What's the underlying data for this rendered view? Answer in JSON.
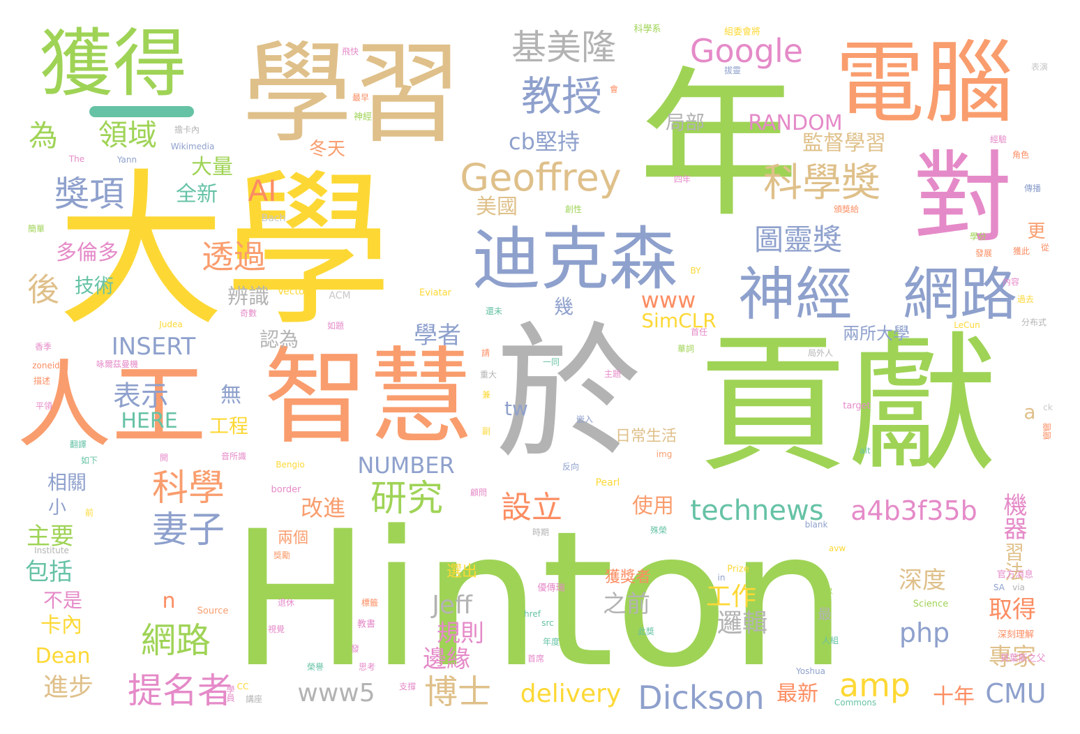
{
  "palette": {
    "green": "#9fd356",
    "yellow": "#fdd835",
    "gray": "#b3b3b3",
    "salmon": "#f99d6e",
    "tan": "#dfc08a",
    "pink": "#e58ac8",
    "blue": "#8ea0cc",
    "teal": "#66c2a5",
    "orange": "#fc8d62",
    "lightgray": "#c7c7c7"
  },
  "accent_bar_color": "#66c2a5",
  "words": [
    {
      "text": "Hinton",
      "color": "green"
    },
    {
      "text": "大學",
      "color": "yellow"
    },
    {
      "text": "年",
      "color": "green"
    },
    {
      "text": "於",
      "color": "gray"
    },
    {
      "text": "貢獻",
      "color": "green"
    },
    {
      "text": "學習",
      "color": "tan"
    },
    {
      "text": "智慧",
      "color": "salmon"
    },
    {
      "text": "電腦",
      "color": "salmon"
    },
    {
      "text": "對",
      "color": "pink"
    },
    {
      "text": "人工",
      "color": "salmon"
    },
    {
      "text": "獲得",
      "color": "green"
    },
    {
      "text": "迪克森",
      "color": "blue"
    },
    {
      "text": "神經",
      "color": "blue"
    },
    {
      "text": "網路",
      "color": "blue"
    },
    {
      "text": "Geoffrey",
      "color": "tan"
    },
    {
      "text": "Google",
      "color": "pink"
    },
    {
      "text": "基美隆",
      "color": "gray"
    },
    {
      "text": "教授",
      "color": "blue"
    },
    {
      "text": "科學獎",
      "color": "tan"
    },
    {
      "text": "Dickson",
      "color": "blue"
    },
    {
      "text": "technews",
      "color": "teal"
    },
    {
      "text": "a4b3f35b",
      "color": "pink"
    },
    {
      "text": "提名者",
      "color": "pink"
    },
    {
      "text": "科學",
      "color": "salmon"
    },
    {
      "text": "妻子",
      "color": "blue"
    },
    {
      "text": "研究",
      "color": "green"
    },
    {
      "text": "設立",
      "color": "orange"
    },
    {
      "text": "博士",
      "color": "tan"
    },
    {
      "text": "網路",
      "color": "green"
    },
    {
      "text": "amp",
      "color": "yellow"
    },
    {
      "text": "delivery",
      "color": "yellow"
    },
    {
      "text": "www5",
      "color": "gray"
    },
    {
      "text": "CMU",
      "color": "blue"
    },
    {
      "text": "獎項",
      "color": "blue"
    },
    {
      "text": "領域",
      "color": "green"
    },
    {
      "text": "為",
      "color": "green"
    },
    {
      "text": "後",
      "color": "tan"
    },
    {
      "text": "透過",
      "color": "salmon"
    },
    {
      "text": "表示",
      "color": "blue"
    },
    {
      "text": "圖靈獎",
      "color": "blue"
    },
    {
      "text": "RANDOM",
      "color": "pink"
    },
    {
      "text": "INSERT",
      "color": "blue"
    },
    {
      "text": "NUMBER",
      "color": "blue"
    },
    {
      "text": "HERE",
      "color": "teal"
    },
    {
      "text": "AI",
      "color": "orange"
    },
    {
      "text": "cb堅持",
      "color": "blue"
    },
    {
      "text": "www",
      "color": "orange"
    },
    {
      "text": "SimCLR",
      "color": "yellow"
    },
    {
      "text": "監督學習",
      "color": "tan"
    },
    {
      "text": "兩所大學",
      "color": "blue"
    },
    {
      "text": "深度",
      "color": "tan"
    },
    {
      "text": "機器",
      "color": "pink"
    },
    {
      "text": "習法",
      "color": "tan"
    },
    {
      "text": "取得",
      "color": "orange"
    },
    {
      "text": "專家",
      "color": "tan"
    },
    {
      "text": "十年",
      "color": "orange"
    },
    {
      "text": "最新",
      "color": "orange"
    },
    {
      "text": "php",
      "color": "blue"
    },
    {
      "text": "Jeff",
      "color": "gray"
    },
    {
      "text": "規則",
      "color": "pink"
    },
    {
      "text": "邊緣",
      "color": "pink"
    },
    {
      "text": "工作",
      "color": "yellow"
    },
    {
      "text": "邏輯",
      "color": "gray"
    },
    {
      "text": "之前",
      "color": "gray"
    },
    {
      "text": "獲獎者",
      "color": "orange"
    },
    {
      "text": "n",
      "color": "orange"
    },
    {
      "text": "Dean",
      "color": "yellow"
    },
    {
      "text": "進步",
      "color": "tan"
    },
    {
      "text": "卡內",
      "color": "yellow"
    },
    {
      "text": "包括",
      "color": "teal"
    },
    {
      "text": "主要",
      "color": "green"
    },
    {
      "text": "不是",
      "color": "pink"
    },
    {
      "text": "小",
      "color": "blue"
    },
    {
      "text": "相關",
      "color": "blue"
    },
    {
      "text": "多倫多",
      "color": "pink"
    },
    {
      "text": "技術",
      "color": "teal"
    },
    {
      "text": "全新",
      "color": "teal"
    },
    {
      "text": "大量",
      "color": "green"
    },
    {
      "text": "冬天",
      "color": "salmon"
    },
    {
      "text": "美國",
      "color": "tan"
    },
    {
      "text": "局部",
      "color": "gray"
    },
    {
      "text": "辨識",
      "color": "gray"
    },
    {
      "text": "認為",
      "color": "gray"
    },
    {
      "text": "學者",
      "color": "blue"
    },
    {
      "text": "幾",
      "color": "blue"
    },
    {
      "text": "無",
      "color": "blue"
    },
    {
      "text": "工程",
      "color": "yellow"
    },
    {
      "text": "tw",
      "color": "blue"
    },
    {
      "text": "日常生活",
      "color": "tan"
    },
    {
      "text": "改進",
      "color": "salmon"
    },
    {
      "text": "使用",
      "color": "salmon"
    },
    {
      "text": "兩個",
      "color": "salmon"
    },
    {
      "text": "更",
      "color": "salmon"
    },
    {
      "text": "a",
      "color": "tan"
    },
    {
      "text": "ck",
      "color": "lightgray"
    },
    {
      "text": "Wikimedia",
      "color": "blue"
    },
    {
      "text": "Bach",
      "color": "lightgray"
    },
    {
      "text": "ACM",
      "color": "lightgray"
    },
    {
      "text": "Vector",
      "color": "yellow"
    },
    {
      "text": "Eviatar",
      "color": "yellow"
    },
    {
      "text": "Judea",
      "color": "yellow"
    },
    {
      "text": "Yann",
      "color": "blue"
    },
    {
      "text": "The",
      "color": "pink"
    },
    {
      "text": "BY",
      "color": "yellow"
    },
    {
      "text": "LeCun",
      "color": "yellow"
    },
    {
      "text": "Bengio",
      "color": "yellow"
    },
    {
      "text": "border",
      "color": "pink"
    },
    {
      "text": "Pearl",
      "color": "yellow"
    },
    {
      "text": "img",
      "color": "salmon"
    },
    {
      "text": "target",
      "color": "pink"
    },
    {
      "text": "alt",
      "color": "teal"
    },
    {
      "text": "blank",
      "color": "blue"
    },
    {
      "text": "avw",
      "color": "yellow"
    },
    {
      "text": "Prize",
      "color": "yellow"
    },
    {
      "text": "in",
      "color": "blue"
    },
    {
      "text": "Science",
      "color": "green"
    },
    {
      "text": "SA",
      "color": "blue"
    },
    {
      "text": "via",
      "color": "gray"
    },
    {
      "text": "Source",
      "color": "salmon"
    },
    {
      "text": "href",
      "color": "teal"
    },
    {
      "text": "src",
      "color": "teal"
    },
    {
      "text": "Yoshua",
      "color": "blue"
    },
    {
      "text": "Commons",
      "color": "teal"
    },
    {
      "text": "CC",
      "color": "yellow"
    },
    {
      "text": "Institute",
      "color": "gray"
    },
    {
      "text": "zoneid",
      "color": "orange"
    },
    {
      "text": "科學系",
      "color": "green"
    },
    {
      "text": "組委會將",
      "color": "yellow"
    },
    {
      "text": "飛快",
      "color": "pink"
    },
    {
      "text": "拔靈",
      "color": "blue"
    },
    {
      "text": "表演",
      "color": "lightgray"
    },
    {
      "text": "最早",
      "color": "orange"
    },
    {
      "text": "神經",
      "color": "green"
    },
    {
      "text": "擔卡內",
      "color": "gray"
    },
    {
      "text": "經驗",
      "color": "pink"
    },
    {
      "text": "角色",
      "color": "orange"
    },
    {
      "text": "傳播",
      "color": "blue"
    },
    {
      "text": "四年",
      "color": "pink"
    },
    {
      "text": "創性",
      "color": "green"
    },
    {
      "text": "頒獎給",
      "color": "orange"
    },
    {
      "text": "簡單",
      "color": "green"
    },
    {
      "text": "學分",
      "color": "green"
    },
    {
      "text": "發展",
      "color": "orange"
    },
    {
      "text": "獲此",
      "color": "orange"
    },
    {
      "text": "從",
      "color": "orange"
    },
    {
      "text": "內容",
      "color": "pink"
    },
    {
      "text": "過去",
      "color": "yellow"
    },
    {
      "text": "分布式",
      "color": "gray"
    },
    {
      "text": "還未",
      "color": "teal"
    },
    {
      "text": "香季",
      "color": "pink"
    },
    {
      "text": "如題",
      "color": "pink"
    },
    {
      "text": "首任",
      "color": "pink"
    },
    {
      "text": "華詞",
      "color": "green"
    },
    {
      "text": "局外人",
      "color": "gray"
    },
    {
      "text": "一同",
      "color": "teal"
    },
    {
      "text": "主題",
      "color": "pink"
    },
    {
      "text": "重大",
      "color": "gray"
    },
    {
      "text": "嵌入",
      "color": "blue"
    },
    {
      "text": "反向",
      "color": "blue"
    },
    {
      "text": "副",
      "color": "yellow"
    },
    {
      "text": "顧問",
      "color": "pink"
    },
    {
      "text": "開",
      "color": "pink"
    },
    {
      "text": "如下",
      "color": "teal"
    },
    {
      "text": "音所識",
      "color": "pink"
    },
    {
      "text": "翻譯",
      "color": "teal"
    },
    {
      "text": "時期",
      "color": "gray"
    },
    {
      "text": "殊榮",
      "color": "teal"
    },
    {
      "text": "獎勵",
      "color": "salmon"
    },
    {
      "text": "選出",
      "color": "yellow"
    },
    {
      "text": "優傳瑞",
      "color": "pink"
    },
    {
      "text": "退休",
      "color": "pink"
    },
    {
      "text": "教書",
      "color": "pink"
    },
    {
      "text": "年度",
      "color": "teal"
    },
    {
      "text": "首席",
      "color": "pink"
    },
    {
      "text": "此獎",
      "color": "teal"
    },
    {
      "text": "人組",
      "color": "teal"
    },
    {
      "text": "官方消息",
      "color": "pink"
    },
    {
      "text": "深刻理解",
      "color": "orange"
    },
    {
      "text": "貝葉斯之父",
      "color": "pink"
    },
    {
      "text": "支撐",
      "color": "pink"
    },
    {
      "text": "榮譽",
      "color": "teal"
    },
    {
      "text": "講座",
      "color": "gray"
    },
    {
      "text": "思考",
      "color": "pink"
    },
    {
      "text": "發",
      "color": "pink"
    },
    {
      "text": "標籤",
      "color": "orange"
    },
    {
      "text": "抽象",
      "color": "green"
    },
    {
      "text": "最",
      "color": "gray"
    },
    {
      "text": "描述",
      "color": "orange"
    },
    {
      "text": "平領",
      "color": "pink"
    },
    {
      "text": "請",
      "color": "orange"
    },
    {
      "text": "兼",
      "color": "yellow"
    },
    {
      "text": "前",
      "color": "yellow"
    },
    {
      "text": "會",
      "color": "orange"
    },
    {
      "text": "奇數",
      "color": "pink"
    },
    {
      "text": "咏爾茲曼機",
      "color": "pink"
    },
    {
      "text": "御御",
      "color": "orange"
    },
    {
      "text": "學員",
      "color": "pink"
    },
    {
      "text": "視覺",
      "color": "pink"
    }
  ]
}
